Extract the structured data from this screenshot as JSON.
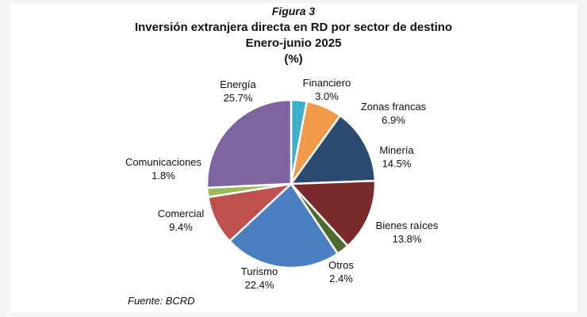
{
  "figure": {
    "label": "Figura 3",
    "title": "Inversión extranjera directa en RD por sector de destino",
    "subtitle": "Enero-junio 2025",
    "unit": "(%)",
    "source": "Fuente: BCRD"
  },
  "chart_data": {
    "type": "pie",
    "title": "Inversión extranjera directa en RD por sector de destino",
    "subtitle": "Enero-junio 2025",
    "unit": "%",
    "start": "12 o'clock, clockwise",
    "slices": [
      {
        "name": "Financiero",
        "value": 3.0,
        "value_label": "3.0%",
        "color": "#3fb0c9"
      },
      {
        "name": "Zonas francas",
        "value": 6.9,
        "value_label": "6.9%",
        "color": "#f29a4a"
      },
      {
        "name": "Minería",
        "value": 14.5,
        "value_label": "14.5%",
        "color": "#2b4a6f"
      },
      {
        "name": "Bienes raíces",
        "value": 13.8,
        "value_label": "13.8%",
        "color": "#7b2a2c"
      },
      {
        "name": "Otros",
        "value": 2.4,
        "value_label": "2.4%",
        "color": "#4e6a2c"
      },
      {
        "name": "Turismo",
        "value": 22.4,
        "value_label": "22.4%",
        "color": "#4a7fc1"
      },
      {
        "name": "Comercial",
        "value": 9.4,
        "value_label": "9.4%",
        "color": "#c0504d"
      },
      {
        "name": "Comunicaciones",
        "value": 1.8,
        "value_label": "1.8%",
        "color": "#9bbb59"
      },
      {
        "name": "Energía",
        "value": 25.7,
        "value_label": "25.7%",
        "color": "#8064a2"
      }
    ]
  }
}
